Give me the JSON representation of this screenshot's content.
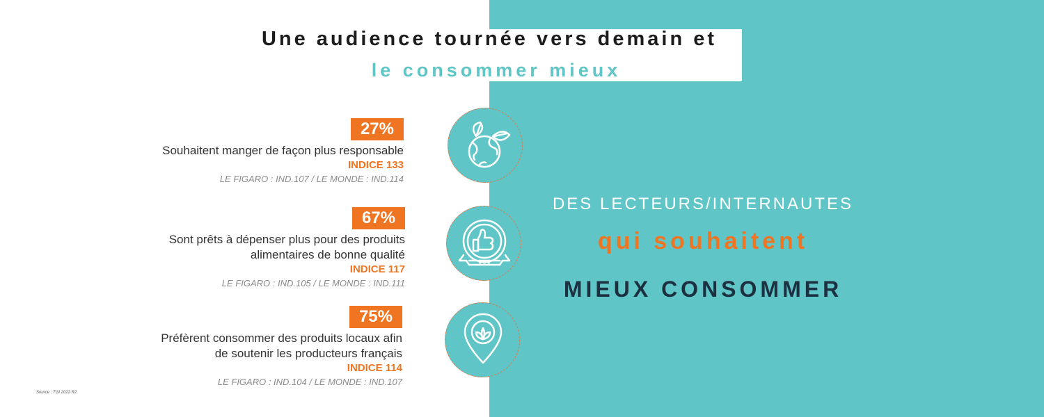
{
  "title": {
    "line1": "Une audience tournée vers demain et",
    "line2": "le consommer mieux"
  },
  "stats": [
    {
      "percent": "27%",
      "description_lines": [
        "Souhaitent manger de façon plus responsable"
      ],
      "indice": "INDICE 133",
      "comparison": "LE FIGARO : IND.107 / LE MONDE : IND.114",
      "icon": "globe-leaves-icon"
    },
    {
      "percent": "67%",
      "description_lines": [
        "Sont prêts à dépenser plus pour des produits",
        "alimentaires de bonne qualité"
      ],
      "indice": "INDICE 117",
      "comparison": "LE FIGARO : IND.105 / LE MONDE : IND.111",
      "icon": "thumbs-up-badge-icon"
    },
    {
      "percent": "75%",
      "description_lines": [
        "Préfèrent consommer des produits locaux afin",
        "de soutenir les producteurs français"
      ],
      "indice": "INDICE 114",
      "comparison": "LE FIGARO : IND.104 / LE MONDE : IND.107",
      "icon": "location-leaf-icon"
    }
  ],
  "right_panel": {
    "line1": "DES LECTEURS/INTERNAUTES",
    "line2": "qui souhaitent",
    "line3": "MIEUX CONSOMMER"
  },
  "source": "Source : TGI 2022 R2",
  "colors": {
    "teal": "#5fc5c6",
    "orange": "#f07522",
    "navy": "#1c3040"
  }
}
